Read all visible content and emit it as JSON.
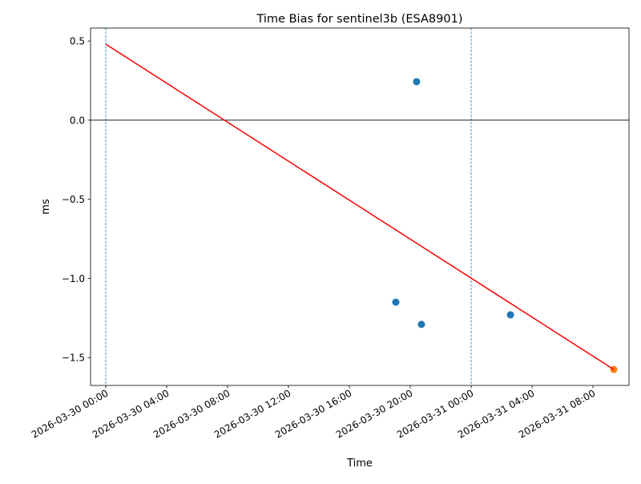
{
  "chart_data": {
    "type": "scatter",
    "title": "Time Bias for sentinel3b (ESA8901)",
    "xlabel": "Time",
    "ylabel": "ms",
    "xlim": [
      "2026-03-29T23:00",
      "2026-03-31T10:22"
    ],
    "ylim": [
      -1.676,
      0.582
    ],
    "grid": false,
    "x_ticks": [
      {
        "t": "2026-03-30T00:00",
        "label": "2026-03-30 00:00"
      },
      {
        "t": "2026-03-30T04:00",
        "label": "2026-03-30 04:00"
      },
      {
        "t": "2026-03-30T08:00",
        "label": "2026-03-30 08:00"
      },
      {
        "t": "2026-03-30T12:00",
        "label": "2026-03-30 12:00"
      },
      {
        "t": "2026-03-30T16:00",
        "label": "2026-03-30 16:00"
      },
      {
        "t": "2026-03-30T20:00",
        "label": "2026-03-30 20:00"
      },
      {
        "t": "2026-03-31T00:00",
        "label": "2026-03-31 00:00"
      },
      {
        "t": "2026-03-31T04:00",
        "label": "2026-03-31 04:00"
      },
      {
        "t": "2026-03-31T08:00",
        "label": "2026-03-31 08:00"
      }
    ],
    "y_ticks": [
      {
        "v": 0.5,
        "label": "0.5"
      },
      {
        "v": 0.0,
        "label": "0.0"
      },
      {
        "v": -0.5,
        "label": "−0.5"
      },
      {
        "v": -1.0,
        "label": "−1.0"
      },
      {
        "v": -1.5,
        "label": "−1.5"
      }
    ],
    "series": [
      {
        "kind": "points",
        "color": "#1f77b4",
        "points": [
          {
            "t": "2026-03-30T19:03",
            "y": -1.15
          },
          {
            "t": "2026-03-30T20:25",
            "y": 0.243
          },
          {
            "t": "2026-03-30T20:44",
            "y": -1.29
          },
          {
            "t": "2026-03-31T02:35",
            "y": -1.23
          }
        ]
      },
      {
        "kind": "points",
        "color": "#ff7f0e",
        "points": [
          {
            "t": "2026-03-31T09:22",
            "y": -1.575
          }
        ]
      },
      {
        "kind": "line",
        "color": "#ff0000",
        "points": [
          {
            "t": "2026-03-30T00:00",
            "y": 0.48
          },
          {
            "t": "2026-03-31T09:22",
            "y": -1.575
          }
        ]
      }
    ],
    "hlines": [
      {
        "y": 0,
        "color": "#000000"
      }
    ],
    "vlines": [
      {
        "t": "2026-03-30T00:00",
        "color": "#1f77b4",
        "style": "dashed"
      },
      {
        "t": "2026-03-31T00:00",
        "color": "#1f77b4",
        "style": "dashed"
      }
    ]
  }
}
